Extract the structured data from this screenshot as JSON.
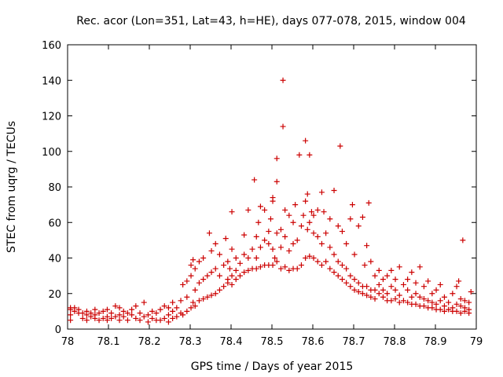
{
  "chart_data": {
    "type": "scatter",
    "title": "Rec. acor (Lon=351, Lat=43, h=HE), days 077-078, 2015, window 004",
    "xlabel": "GPS time / Days of year 2015",
    "ylabel": "STEC from uqrg / TECUs",
    "xlim": [
      78,
      79
    ],
    "ylim": [
      0,
      160
    ],
    "xticks": [
      "78",
      "78.1",
      "78.2",
      "78.3",
      "78.4",
      "78.5",
      "78.6",
      "78.7",
      "78.8",
      "78.9",
      "79"
    ],
    "yticks": [
      "0",
      "20",
      "40",
      "60",
      "80",
      "100",
      "120",
      "140",
      "160"
    ],
    "grid": false,
    "marker": "plus",
    "color": "#cc0000",
    "series": [
      {
        "points": [
          [
            78.007,
            5
          ],
          [
            78.007,
            8
          ],
          [
            78.007,
            11
          ],
          [
            78.007,
            12
          ],
          [
            78.017,
            10
          ],
          [
            78.017,
            12
          ],
          [
            78.027,
            9
          ],
          [
            78.027,
            11
          ],
          [
            78.037,
            6
          ],
          [
            78.037,
            9
          ],
          [
            78.047,
            5
          ],
          [
            78.047,
            8
          ],
          [
            78.047,
            10
          ],
          [
            78.057,
            7
          ],
          [
            78.057,
            9
          ],
          [
            78.067,
            6
          ],
          [
            78.067,
            8
          ],
          [
            78.067,
            11
          ],
          [
            78.077,
            5
          ],
          [
            78.077,
            9
          ],
          [
            78.087,
            6
          ],
          [
            78.087,
            10
          ],
          [
            78.097,
            5
          ],
          [
            78.097,
            7
          ],
          [
            78.097,
            11
          ],
          [
            78.107,
            6
          ],
          [
            78.107,
            9
          ],
          [
            78.117,
            7
          ],
          [
            78.117,
            13
          ],
          [
            78.127,
            5
          ],
          [
            78.127,
            8
          ],
          [
            78.127,
            12
          ],
          [
            78.137,
            7
          ],
          [
            78.137,
            10
          ],
          [
            78.147,
            5
          ],
          [
            78.147,
            9
          ],
          [
            78.157,
            8
          ],
          [
            78.157,
            11
          ],
          [
            78.167,
            6
          ],
          [
            78.167,
            13
          ],
          [
            78.177,
            5
          ],
          [
            78.177,
            9
          ],
          [
            78.187,
            7
          ],
          [
            78.187,
            15
          ],
          [
            78.197,
            4
          ],
          [
            78.197,
            8
          ],
          [
            78.207,
            6
          ],
          [
            78.207,
            10
          ],
          [
            78.217,
            5
          ],
          [
            78.217,
            9
          ],
          [
            78.227,
            5
          ],
          [
            78.227,
            11
          ],
          [
            78.237,
            6
          ],
          [
            78.237,
            13
          ],
          [
            78.247,
            4
          ],
          [
            78.247,
            8
          ],
          [
            78.247,
            12
          ],
          [
            78.257,
            6
          ],
          [
            78.257,
            10
          ],
          [
            78.257,
            15
          ],
          [
            78.267,
            7
          ],
          [
            78.267,
            12
          ],
          [
            78.277,
            9
          ],
          [
            78.277,
            16
          ],
          [
            78.282,
            8
          ],
          [
            78.282,
            25
          ],
          [
            78.292,
            10
          ],
          [
            78.292,
            18
          ],
          [
            78.292,
            27
          ],
          [
            78.302,
            12
          ],
          [
            78.302,
            30
          ],
          [
            78.302,
            36
          ],
          [
            78.307,
            15
          ],
          [
            78.307,
            39
          ],
          [
            78.312,
            13
          ],
          [
            78.312,
            22
          ],
          [
            78.312,
            34
          ],
          [
            78.322,
            16
          ],
          [
            78.322,
            26
          ],
          [
            78.322,
            38
          ],
          [
            78.332,
            17
          ],
          [
            78.332,
            28
          ],
          [
            78.332,
            40
          ],
          [
            78.342,
            18
          ],
          [
            78.342,
            30
          ],
          [
            78.347,
            54
          ],
          [
            78.352,
            19
          ],
          [
            78.352,
            32
          ],
          [
            78.352,
            44
          ],
          [
            78.362,
            20
          ],
          [
            78.362,
            34
          ],
          [
            78.362,
            48
          ],
          [
            78.372,
            22
          ],
          [
            78.372,
            30
          ],
          [
            78.372,
            42
          ],
          [
            78.382,
            24
          ],
          [
            78.382,
            36
          ],
          [
            78.387,
            51
          ],
          [
            78.392,
            26
          ],
          [
            78.392,
            28
          ],
          [
            78.392,
            38
          ],
          [
            78.397,
            34
          ],
          [
            78.402,
            25
          ],
          [
            78.402,
            30
          ],
          [
            78.402,
            45
          ],
          [
            78.402,
            66
          ],
          [
            78.412,
            28
          ],
          [
            78.412,
            33
          ],
          [
            78.412,
            40
          ],
          [
            78.422,
            30
          ],
          [
            78.422,
            37
          ],
          [
            78.432,
            32
          ],
          [
            78.432,
            42
          ],
          [
            78.432,
            53
          ],
          [
            78.442,
            33
          ],
          [
            78.442,
            40
          ],
          [
            78.442,
            67
          ],
          [
            78.452,
            34
          ],
          [
            78.452,
            45
          ],
          [
            78.457,
            84
          ],
          [
            78.462,
            34
          ],
          [
            78.462,
            40
          ],
          [
            78.462,
            52
          ],
          [
            78.467,
            60
          ],
          [
            78.472,
            35
          ],
          [
            78.472,
            46
          ],
          [
            78.472,
            69
          ],
          [
            78.482,
            36
          ],
          [
            78.482,
            50
          ],
          [
            78.482,
            67
          ],
          [
            78.492,
            36
          ],
          [
            78.492,
            55
          ],
          [
            78.492,
            48
          ],
          [
            78.497,
            62
          ],
          [
            78.502,
            36
          ],
          [
            78.502,
            45
          ],
          [
            78.502,
            72
          ],
          [
            78.502,
            74
          ],
          [
            78.507,
            40
          ],
          [
            78.512,
            38
          ],
          [
            78.512,
            54
          ],
          [
            78.512,
            83
          ],
          [
            78.512,
            96
          ],
          [
            78.522,
            34
          ],
          [
            78.522,
            46
          ],
          [
            78.522,
            56
          ],
          [
            78.527,
            140
          ],
          [
            78.527,
            114
          ],
          [
            78.532,
            35
          ],
          [
            78.532,
            52
          ],
          [
            78.532,
            67
          ],
          [
            78.542,
            33
          ],
          [
            78.542,
            44
          ],
          [
            78.542,
            64
          ],
          [
            78.552,
            34
          ],
          [
            78.552,
            48
          ],
          [
            78.552,
            60
          ],
          [
            78.557,
            70
          ],
          [
            78.562,
            34
          ],
          [
            78.562,
            50
          ],
          [
            78.567,
            98
          ],
          [
            78.572,
            36
          ],
          [
            78.572,
            58
          ],
          [
            78.577,
            64
          ],
          [
            78.582,
            40
          ],
          [
            78.582,
            72
          ],
          [
            78.582,
            106
          ],
          [
            78.587,
            56
          ],
          [
            78.587,
            76
          ],
          [
            78.592,
            41
          ],
          [
            78.592,
            60
          ],
          [
            78.592,
            98
          ],
          [
            78.597,
            66
          ],
          [
            78.602,
            40
          ],
          [
            78.602,
            54
          ],
          [
            78.602,
            64
          ],
          [
            78.612,
            38
          ],
          [
            78.612,
            52
          ],
          [
            78.612,
            67
          ],
          [
            78.622,
            36
          ],
          [
            78.622,
            48
          ],
          [
            78.622,
            77
          ],
          [
            78.627,
            66
          ],
          [
            78.632,
            38
          ],
          [
            78.632,
            54
          ],
          [
            78.642,
            34
          ],
          [
            78.642,
            46
          ],
          [
            78.642,
            62
          ],
          [
            78.652,
            32
          ],
          [
            78.652,
            42
          ],
          [
            78.652,
            78
          ],
          [
            78.662,
            30
          ],
          [
            78.662,
            38
          ],
          [
            78.662,
            58
          ],
          [
            78.667,
            103
          ],
          [
            78.672,
            28
          ],
          [
            78.672,
            36
          ],
          [
            78.672,
            55
          ],
          [
            78.682,
            26
          ],
          [
            78.682,
            34
          ],
          [
            78.682,
            48
          ],
          [
            78.692,
            24
          ],
          [
            78.692,
            30
          ],
          [
            78.692,
            62
          ],
          [
            78.697,
            70
          ],
          [
            78.702,
            22
          ],
          [
            78.702,
            28
          ],
          [
            78.702,
            42
          ],
          [
            78.712,
            21
          ],
          [
            78.712,
            26
          ],
          [
            78.712,
            58
          ],
          [
            78.722,
            20
          ],
          [
            78.722,
            24
          ],
          [
            78.722,
            63
          ],
          [
            78.727,
            36
          ],
          [
            78.732,
            19
          ],
          [
            78.732,
            24
          ],
          [
            78.732,
            47
          ],
          [
            78.737,
            71
          ],
          [
            78.742,
            18
          ],
          [
            78.742,
            22
          ],
          [
            78.742,
            38
          ],
          [
            78.752,
            17
          ],
          [
            78.752,
            22
          ],
          [
            78.752,
            30
          ],
          [
            78.762,
            20
          ],
          [
            78.762,
            25
          ],
          [
            78.762,
            33
          ],
          [
            78.772,
            18
          ],
          [
            78.772,
            22
          ],
          [
            78.772,
            28
          ],
          [
            78.782,
            16
          ],
          [
            78.782,
            20
          ],
          [
            78.782,
            30
          ],
          [
            78.792,
            16
          ],
          [
            78.792,
            24
          ],
          [
            78.792,
            33
          ],
          [
            78.802,
            17
          ],
          [
            78.802,
            22
          ],
          [
            78.802,
            28
          ],
          [
            78.812,
            15
          ],
          [
            78.812,
            19
          ],
          [
            78.812,
            35
          ],
          [
            78.822,
            16
          ],
          [
            78.822,
            25
          ],
          [
            78.832,
            15
          ],
          [
            78.832,
            22
          ],
          [
            78.832,
            28
          ],
          [
            78.842,
            14
          ],
          [
            78.842,
            18
          ],
          [
            78.842,
            32
          ],
          [
            78.852,
            14
          ],
          [
            78.852,
            20
          ],
          [
            78.852,
            26
          ],
          [
            78.862,
            13
          ],
          [
            78.862,
            18
          ],
          [
            78.862,
            35
          ],
          [
            78.872,
            13
          ],
          [
            78.872,
            17
          ],
          [
            78.872,
            24
          ],
          [
            78.882,
            12
          ],
          [
            78.882,
            16
          ],
          [
            78.882,
            27
          ],
          [
            78.892,
            12
          ],
          [
            78.892,
            15
          ],
          [
            78.892,
            20
          ],
          [
            78.902,
            11
          ],
          [
            78.902,
            14
          ],
          [
            78.902,
            22
          ],
          [
            78.912,
            11
          ],
          [
            78.912,
            16
          ],
          [
            78.912,
            25
          ],
          [
            78.922,
            10
          ],
          [
            78.922,
            13
          ],
          [
            78.922,
            18
          ],
          [
            78.932,
            11
          ],
          [
            78.932,
            15
          ],
          [
            78.942,
            10
          ],
          [
            78.942,
            12
          ],
          [
            78.942,
            20
          ],
          [
            78.952,
            10
          ],
          [
            78.952,
            14
          ],
          [
            78.952,
            24
          ],
          [
            78.957,
            27
          ],
          [
            78.962,
            9
          ],
          [
            78.962,
            13
          ],
          [
            78.962,
            17
          ],
          [
            78.967,
            50
          ],
          [
            78.972,
            10
          ],
          [
            78.972,
            12
          ],
          [
            78.972,
            16
          ],
          [
            78.982,
            9
          ],
          [
            78.982,
            11
          ],
          [
            78.982,
            15
          ],
          [
            78.987,
            21
          ]
        ]
      }
    ]
  }
}
